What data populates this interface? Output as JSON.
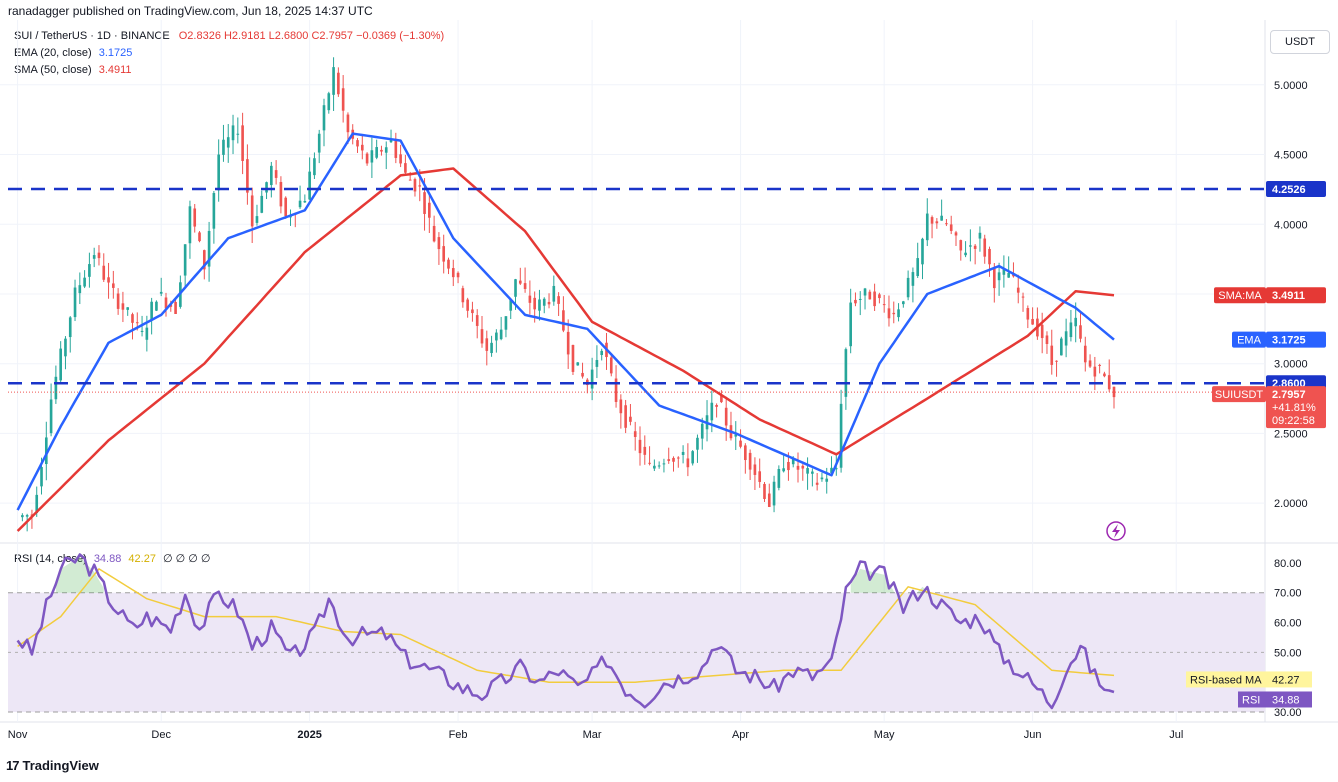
{
  "header": {
    "publisher": "ranadagger published on TradingView.com, Jun 18, 2025 14:37 UTC",
    "symbol": "SUI / TetherUS · 1D · BINANCE",
    "ohlc": "O2.8326  H2.9181  L2.6800  C2.7957  −0.0369 (−1.30%)",
    "ema_label": "EMA (20, close)",
    "ema_value": "3.1725",
    "sma_label": "SMA (50, close)",
    "sma_value": "3.4911",
    "currency": "USDT"
  },
  "rsi_legend": {
    "label": "RSI (14, close)",
    "rsi_value": "34.88",
    "ma_value": "42.27",
    "placeholders": "∅ ∅ ∅ ∅"
  },
  "footer": {
    "brand": "TradingView",
    "logo": "17"
  },
  "colors": {
    "up": "#26a69a",
    "down": "#ef5350",
    "ema": "#2962ff",
    "sma": "#e53935",
    "level": "#1a34c9",
    "rsi": "#7e57c2",
    "rsi_ma": "#f2cc3d",
    "rsi_band": "#ede7f6"
  },
  "chart_data": [
    {
      "type": "candlestick",
      "title": "SUI / TetherUS · 1D · BINANCE",
      "x_ticks": [
        "Nov",
        "Dec",
        "2025",
        "Feb",
        "Mar",
        "Apr",
        "May",
        "Jun",
        "Jul"
      ],
      "y_ticks": [
        "2.0000",
        "2.5000",
        "3.0000",
        "3.5000",
        "4.0000",
        "4.5000",
        "5.0000"
      ],
      "ylim": [
        1.75,
        5.35
      ],
      "price_keypoints": [
        [
          "2024-11-01",
          1.9
        ],
        [
          "2024-11-04",
          1.92
        ],
        [
          "2024-11-06",
          2.3
        ],
        [
          "2024-11-08",
          2.75
        ],
        [
          "2024-11-11",
          3.2
        ],
        [
          "2024-11-13",
          3.5
        ],
        [
          "2024-11-17",
          3.8
        ],
        [
          "2024-11-20",
          3.55
        ],
        [
          "2024-11-24",
          3.35
        ],
        [
          "2024-11-27",
          3.2
        ],
        [
          "2024-11-30",
          3.5
        ],
        [
          "2024-12-04",
          3.4
        ],
        [
          "2024-12-07",
          4.1
        ],
        [
          "2024-12-10",
          3.7
        ],
        [
          "2024-12-13",
          4.5
        ],
        [
          "2024-12-17",
          4.7
        ],
        [
          "2024-12-20",
          4.0
        ],
        [
          "2024-12-24",
          4.4
        ],
        [
          "2024-12-27",
          4.05
        ],
        [
          "2024-12-31",
          4.2
        ],
        [
          "2025-01-04",
          4.8
        ],
        [
          "2025-01-06",
          5.1
        ],
        [
          "2025-01-09",
          4.65
        ],
        [
          "2025-01-13",
          4.45
        ],
        [
          "2025-01-18",
          4.6
        ],
        [
          "2025-01-21",
          4.35
        ],
        [
          "2025-01-24",
          4.25
        ],
        [
          "2025-01-27",
          3.9
        ],
        [
          "2025-01-31",
          3.65
        ],
        [
          "2025-02-03",
          3.4
        ],
        [
          "2025-02-07",
          3.1
        ],
        [
          "2025-02-10",
          3.25
        ],
        [
          "2025-02-13",
          3.6
        ],
        [
          "2025-02-17",
          3.4
        ],
        [
          "2025-02-21",
          3.5
        ],
        [
          "2025-02-25",
          3.0
        ],
        [
          "2025-02-28",
          2.85
        ],
        [
          "2025-03-03",
          3.15
        ],
        [
          "2025-03-06",
          2.75
        ],
        [
          "2025-03-10",
          2.45
        ],
        [
          "2025-03-13",
          2.25
        ],
        [
          "2025-03-17",
          2.35
        ],
        [
          "2025-03-21",
          2.3
        ],
        [
          "2025-03-25",
          2.6
        ],
        [
          "2025-03-27",
          2.75
        ],
        [
          "2025-03-30",
          2.5
        ],
        [
          "2025-04-03",
          2.3
        ],
        [
          "2025-04-07",
          2.0
        ],
        [
          "2025-04-10",
          2.3
        ],
        [
          "2025-04-13",
          2.25
        ],
        [
          "2025-04-17",
          2.15
        ],
        [
          "2025-04-21",
          2.25
        ],
        [
          "2025-04-22",
          2.75
        ],
        [
          "2025-04-24",
          3.45
        ],
        [
          "2025-04-28",
          3.5
        ],
        [
          "2025-05-03",
          3.35
        ],
        [
          "2025-05-08",
          3.7
        ],
        [
          "2025-05-10",
          4.05
        ],
        [
          "2025-05-14",
          4.0
        ],
        [
          "2025-05-17",
          3.8
        ],
        [
          "2025-05-21",
          3.9
        ],
        [
          "2025-05-24",
          3.6
        ],
        [
          "2025-05-27",
          3.65
        ],
        [
          "2025-05-31",
          3.35
        ],
        [
          "2025-06-03",
          3.2
        ],
        [
          "2025-06-05",
          3.0
        ],
        [
          "2025-06-07",
          3.15
        ],
        [
          "2025-06-10",
          3.3
        ],
        [
          "2025-06-12",
          3.0
        ],
        [
          "2025-06-15",
          2.95
        ],
        [
          "2025-06-18",
          2.7957
        ]
      ],
      "price_overall_range": {
        "high": 5.35,
        "low": 1.75
      },
      "ema20_keypoints": [
        [
          "2024-11-01",
          1.95
        ],
        [
          "2024-11-10",
          2.55
        ],
        [
          "2024-11-20",
          3.15
        ],
        [
          "2024-12-01",
          3.35
        ],
        [
          "2024-12-15",
          3.9
        ],
        [
          "2024-12-31",
          4.1
        ],
        [
          "2025-01-10",
          4.65
        ],
        [
          "2025-01-20",
          4.6
        ],
        [
          "2025-01-31",
          3.9
        ],
        [
          "2025-02-15",
          3.35
        ],
        [
          "2025-02-28",
          3.25
        ],
        [
          "2025-03-15",
          2.7
        ],
        [
          "2025-03-31",
          2.5
        ],
        [
          "2025-04-20",
          2.2
        ],
        [
          "2025-04-30",
          3.0
        ],
        [
          "2025-05-10",
          3.5
        ],
        [
          "2025-05-25",
          3.7
        ],
        [
          "2025-06-10",
          3.4
        ],
        [
          "2025-06-18",
          3.1725
        ]
      ],
      "sma50_keypoints": [
        [
          "2024-11-01",
          1.8
        ],
        [
          "2024-11-20",
          2.45
        ],
        [
          "2024-12-10",
          3.0
        ],
        [
          "2024-12-31",
          3.8
        ],
        [
          "2025-01-20",
          4.35
        ],
        [
          "2025-01-31",
          4.4
        ],
        [
          "2025-02-15",
          3.95
        ],
        [
          "2025-03-01",
          3.3
        ],
        [
          "2025-03-20",
          2.95
        ],
        [
          "2025-04-05",
          2.6
        ],
        [
          "2025-04-21",
          2.35
        ],
        [
          "2025-05-10",
          2.75
        ],
        [
          "2025-05-31",
          3.2
        ],
        [
          "2025-06-10",
          3.52
        ],
        [
          "2025-06-18",
          3.4911
        ]
      ],
      "levels": [
        {
          "value": 4.2526,
          "label": "4.2526"
        },
        {
          "value": 2.86,
          "label": "2.8600"
        }
      ],
      "price_badges": {
        "sma": {
          "name": "SMA:MA",
          "value": "3.4911"
        },
        "ema": {
          "name": "EMA",
          "value": "3.1725"
        },
        "last": {
          "name": "SUIUSDT",
          "value": "2.7957",
          "change": "+41.81%",
          "countdown": "09:22:58"
        }
      }
    },
    {
      "type": "line",
      "title": "RSI (14, close)",
      "y_ticks": [
        "30.00",
        "40.00",
        "50.00",
        "60.00",
        "70.00",
        "80.00"
      ],
      "ylim": [
        28,
        85
      ],
      "band": [
        30,
        70
      ],
      "midline": 50,
      "rsi_keypoints": [
        [
          "2024-11-01",
          55
        ],
        [
          "2024-11-04",
          50
        ],
        [
          "2024-11-07",
          65
        ],
        [
          "2024-11-10",
          78
        ],
        [
          "2024-11-14",
          82
        ],
        [
          "2024-11-17",
          77
        ],
        [
          "2024-11-21",
          66
        ],
        [
          "2024-11-25",
          58
        ],
        [
          "2024-11-28",
          62
        ],
        [
          "2024-12-03",
          58
        ],
        [
          "2024-12-06",
          70
        ],
        [
          "2024-12-09",
          58
        ],
        [
          "2024-12-13",
          70
        ],
        [
          "2024-12-17",
          64
        ],
        [
          "2024-12-20",
          52
        ],
        [
          "2024-12-24",
          58
        ],
        [
          "2024-12-28",
          48
        ],
        [
          "2025-01-02",
          56
        ],
        [
          "2025-01-05",
          68
        ],
        [
          "2025-01-09",
          55
        ],
        [
          "2025-01-13",
          56
        ],
        [
          "2025-01-17",
          56
        ],
        [
          "2025-01-21",
          48
        ],
        [
          "2025-01-25",
          45
        ],
        [
          "2025-01-29",
          42
        ],
        [
          "2025-02-02",
          38
        ],
        [
          "2025-02-06",
          36
        ],
        [
          "2025-02-10",
          40
        ],
        [
          "2025-02-14",
          45
        ],
        [
          "2025-02-18",
          40
        ],
        [
          "2025-02-22",
          44
        ],
        [
          "2025-02-26",
          38
        ],
        [
          "2025-03-01",
          42
        ],
        [
          "2025-03-04",
          48
        ],
        [
          "2025-03-08",
          38
        ],
        [
          "2025-03-12",
          34
        ],
        [
          "2025-03-16",
          40
        ],
        [
          "2025-03-20",
          42
        ],
        [
          "2025-03-24",
          45
        ],
        [
          "2025-03-27",
          54
        ],
        [
          "2025-03-31",
          44
        ],
        [
          "2025-04-04",
          42
        ],
        [
          "2025-04-08",
          38
        ],
        [
          "2025-04-12",
          44
        ],
        [
          "2025-04-16",
          42
        ],
        [
          "2025-04-20",
          46
        ],
        [
          "2025-04-23",
          70
        ],
        [
          "2025-04-26",
          78
        ],
        [
          "2025-05-01",
          76
        ],
        [
          "2025-05-05",
          65
        ],
        [
          "2025-05-09",
          72
        ],
        [
          "2025-05-13",
          66
        ],
        [
          "2025-05-17",
          60
        ],
        [
          "2025-05-21",
          62
        ],
        [
          "2025-05-25",
          50
        ],
        [
          "2025-05-29",
          44
        ],
        [
          "2025-06-02",
          38
        ],
        [
          "2025-06-05",
          33
        ],
        [
          "2025-06-08",
          45
        ],
        [
          "2025-06-11",
          52
        ],
        [
          "2025-06-14",
          42
        ],
        [
          "2025-06-18",
          34.88
        ]
      ],
      "rsi_ma_keypoints": [
        [
          "2024-11-01",
          52
        ],
        [
          "2024-11-10",
          62
        ],
        [
          "2024-11-18",
          78
        ],
        [
          "2024-11-28",
          68
        ],
        [
          "2024-12-10",
          62
        ],
        [
          "2024-12-25",
          62
        ],
        [
          "2025-01-08",
          57
        ],
        [
          "2025-01-20",
          56
        ],
        [
          "2025-02-05",
          44
        ],
        [
          "2025-02-20",
          40
        ],
        [
          "2025-03-10",
          40
        ],
        [
          "2025-03-25",
          42
        ],
        [
          "2025-04-10",
          44
        ],
        [
          "2025-04-22",
          44
        ],
        [
          "2025-05-06",
          72
        ],
        [
          "2025-05-20",
          66
        ],
        [
          "2025-06-05",
          44
        ],
        [
          "2025-06-18",
          42.27
        ]
      ],
      "badges": {
        "ma": {
          "name": "RSI-based MA",
          "value": "42.27"
        },
        "rsi": {
          "name": "RSI",
          "value": "34.88"
        }
      }
    }
  ]
}
